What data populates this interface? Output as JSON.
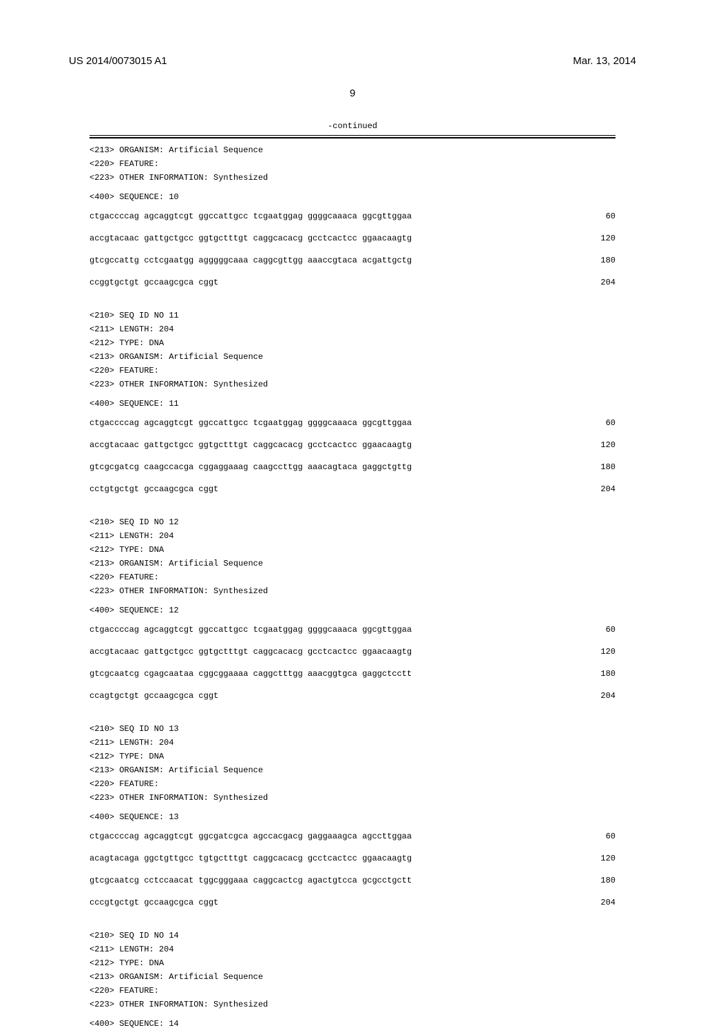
{
  "header": {
    "patent_id": "US 2014/0073015 A1",
    "date": "Mar. 13, 2014",
    "page": "9"
  },
  "continued_label": "-continued",
  "sequences": [
    {
      "meta_top": [
        "<213> ORGANISM: Artificial Sequence",
        "<220> FEATURE:",
        "<223> OTHER INFORMATION: Synthesized"
      ],
      "seq_tag": "<400> SEQUENCE: 10",
      "lines": [
        {
          "seq": "ctgaccccag agcaggtcgt ggccattgcc tcgaatggag ggggcaaaca ggcgttggaa",
          "pos": "60"
        },
        {
          "seq": "accgtacaac gattgctgcc ggtgctttgt caggcacacg gcctcactcc ggaacaagtg",
          "pos": "120"
        },
        {
          "seq": "gtcgccattg cctcgaatgg agggggcaaa caggcgttgg aaaccgtaca acgattgctg",
          "pos": "180"
        },
        {
          "seq": "ccggtgctgt gccaagcgca cggt",
          "pos": "204"
        }
      ]
    },
    {
      "meta": [
        "<210> SEQ ID NO 11",
        "<211> LENGTH: 204",
        "<212> TYPE: DNA",
        "<213> ORGANISM: Artificial Sequence",
        "<220> FEATURE:",
        "<223> OTHER INFORMATION: Synthesized"
      ],
      "seq_tag": "<400> SEQUENCE: 11",
      "lines": [
        {
          "seq": "ctgaccccag agcaggtcgt ggccattgcc tcgaatggag ggggcaaaca ggcgttggaa",
          "pos": "60"
        },
        {
          "seq": "accgtacaac gattgctgcc ggtgctttgt caggcacacg gcctcactcc ggaacaagtg",
          "pos": "120"
        },
        {
          "seq": "gtcgcgatcg caagccacga cggaggaaag caagccttgg aaacagtaca gaggctgttg",
          "pos": "180"
        },
        {
          "seq": "cctgtgctgt gccaagcgca cggt",
          "pos": "204"
        }
      ]
    },
    {
      "meta": [
        "<210> SEQ ID NO 12",
        "<211> LENGTH: 204",
        "<212> TYPE: DNA",
        "<213> ORGANISM: Artificial Sequence",
        "<220> FEATURE:",
        "<223> OTHER INFORMATION: Synthesized"
      ],
      "seq_tag": "<400> SEQUENCE: 12",
      "lines": [
        {
          "seq": "ctgaccccag agcaggtcgt ggccattgcc tcgaatggag ggggcaaaca ggcgttggaa",
          "pos": "60"
        },
        {
          "seq": "accgtacaac gattgctgcc ggtgctttgt caggcacacg gcctcactcc ggaacaagtg",
          "pos": "120"
        },
        {
          "seq": "gtcgcaatcg cgagcaataa cggcggaaaa caggctttgg aaacggtgca gaggctcctt",
          "pos": "180"
        },
        {
          "seq": "ccagtgctgt gccaagcgca cggt",
          "pos": "204"
        }
      ]
    },
    {
      "meta": [
        "<210> SEQ ID NO 13",
        "<211> LENGTH: 204",
        "<212> TYPE: DNA",
        "<213> ORGANISM: Artificial Sequence",
        "<220> FEATURE:",
        "<223> OTHER INFORMATION: Synthesized"
      ],
      "seq_tag": "<400> SEQUENCE: 13",
      "lines": [
        {
          "seq": "ctgaccccag agcaggtcgt ggcgatcgca agccacgacg gaggaaagca agccttggaa",
          "pos": "60"
        },
        {
          "seq": "acagtacaga ggctgttgcc tgtgctttgt caggcacacg gcctcactcc ggaacaagtg",
          "pos": "120"
        },
        {
          "seq": "gtcgcaatcg cctccaacat tggcgggaaa caggcactcg agactgtcca gcgcctgctt",
          "pos": "180"
        },
        {
          "seq": "cccgtgctgt gccaagcgca cggt",
          "pos": "204"
        }
      ]
    },
    {
      "meta": [
        "<210> SEQ ID NO 14",
        "<211> LENGTH: 204",
        "<212> TYPE: DNA",
        "<213> ORGANISM: Artificial Sequence",
        "<220> FEATURE:",
        "<223> OTHER INFORMATION: Synthesized"
      ],
      "seq_tag": "<400> SEQUENCE: 14",
      "lines": []
    }
  ]
}
